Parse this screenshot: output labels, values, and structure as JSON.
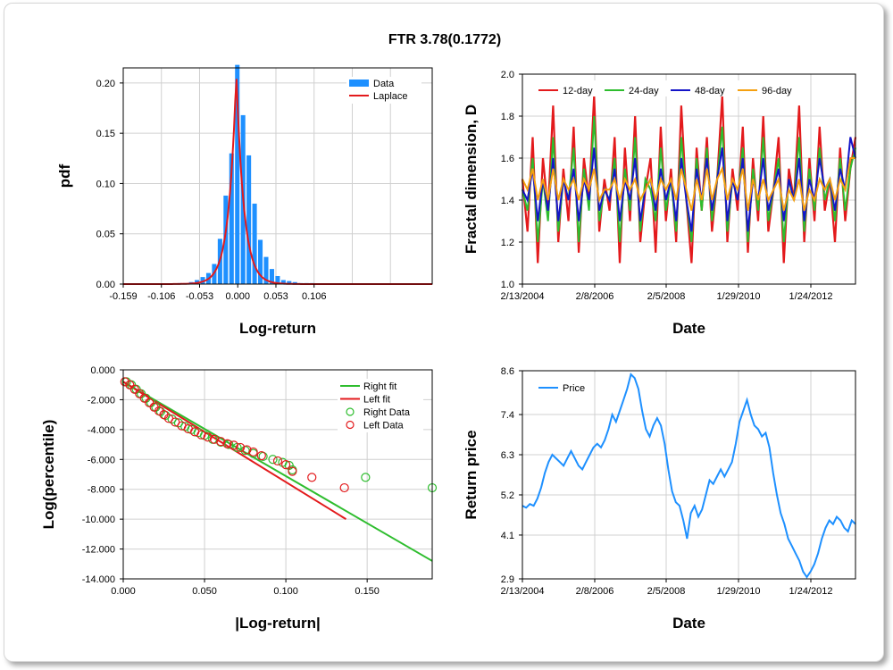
{
  "title": "FTR 3.78(0.1772)",
  "chart_data": [
    {
      "type": "bar",
      "id": "pdf",
      "xlabel": "Log-return",
      "ylabel": "pdf",
      "xticks": [
        "-0.159",
        "-0.106",
        "-0.053",
        "0.000",
        "0.053",
        "0.106"
      ],
      "yticks": [
        "0.00",
        "0.05",
        "0.10",
        "0.15",
        "0.20"
      ],
      "xlim": [
        -0.159,
        0.27
      ],
      "ylim": [
        0,
        0.215
      ],
      "legend": [
        "Data",
        "Laplace"
      ],
      "legend_position": "top-right",
      "colors": {
        "Data": "#1e90ff",
        "Laplace": "#e31a1c"
      },
      "bins_x": [
        -0.08,
        -0.072,
        -0.064,
        -0.056,
        -0.048,
        -0.04,
        -0.032,
        -0.024,
        -0.016,
        -0.008,
        0.0,
        0.008,
        0.016,
        0.024,
        0.032,
        0.04,
        0.048,
        0.056,
        0.064,
        0.072,
        0.08,
        0.088,
        0.096,
        0.104
      ],
      "bins_y": [
        0.001,
        0.001,
        0.002,
        0.004,
        0.007,
        0.011,
        0.02,
        0.045,
        0.088,
        0.13,
        0.218,
        0.168,
        0.128,
        0.08,
        0.044,
        0.027,
        0.015,
        0.008,
        0.004,
        0.003,
        0.002,
        0.001,
        0.001,
        0.001
      ],
      "laplace": {
        "mu": -0.002,
        "b": 0.0105,
        "peak": 0.21
      }
    },
    {
      "type": "line",
      "id": "fractal",
      "xlabel": "Date",
      "ylabel": "Fractal dimension, D",
      "xticks": [
        "2/13/2004",
        "2/8/2006",
        "2/5/2008",
        "1/29/2010",
        "1/24/2012"
      ],
      "yticks": [
        "1.0",
        "1.2",
        "1.4",
        "1.6",
        "1.8",
        "2.0"
      ],
      "ylim": [
        1.0,
        2.0
      ],
      "legend_position": "top-left",
      "series": [
        {
          "name": "12-day",
          "color": "#e31a1c",
          "values": [
            1.5,
            1.25,
            1.7,
            1.1,
            1.6,
            1.35,
            1.85,
            1.2,
            1.55,
            1.3,
            1.75,
            1.15,
            1.6,
            1.4,
            1.9,
            1.25,
            1.5,
            1.35,
            1.7,
            1.1,
            1.65,
            1.3,
            1.8,
            1.2,
            1.45,
            1.6,
            1.15,
            1.75,
            1.3,
            1.55,
            1.2,
            1.85,
            1.4,
            1.1,
            1.65,
            1.35,
            1.7,
            1.25,
            1.5,
            1.9,
            1.2,
            1.55,
            1.35,
            1.75,
            1.15,
            1.6,
            1.3,
            1.8,
            1.25,
            1.45,
            1.7,
            1.1,
            1.55,
            1.4,
            1.85,
            1.2,
            1.6,
            1.3,
            1.75,
            1.35,
            1.5,
            1.2,
            1.65,
            1.3,
            1.55,
            1.7
          ]
        },
        {
          "name": "24-day",
          "color": "#2ebd2e",
          "values": [
            1.45,
            1.35,
            1.6,
            1.2,
            1.5,
            1.3,
            1.7,
            1.25,
            1.5,
            1.4,
            1.65,
            1.2,
            1.55,
            1.35,
            1.8,
            1.3,
            1.45,
            1.4,
            1.6,
            1.2,
            1.55,
            1.35,
            1.7,
            1.25,
            1.5,
            1.45,
            1.3,
            1.65,
            1.35,
            1.5,
            1.25,
            1.7,
            1.4,
            1.2,
            1.6,
            1.35,
            1.65,
            1.3,
            1.5,
            1.75,
            1.25,
            1.5,
            1.4,
            1.65,
            1.2,
            1.55,
            1.35,
            1.7,
            1.3,
            1.45,
            1.6,
            1.2,
            1.5,
            1.4,
            1.7,
            1.25,
            1.55,
            1.35,
            1.65,
            1.4,
            1.5,
            1.3,
            1.6,
            1.35,
            1.55,
            1.65
          ]
        },
        {
          "name": "48-day",
          "color": "#1414c8",
          "values": [
            1.45,
            1.4,
            1.55,
            1.3,
            1.5,
            1.35,
            1.6,
            1.3,
            1.5,
            1.4,
            1.55,
            1.3,
            1.5,
            1.4,
            1.65,
            1.35,
            1.45,
            1.4,
            1.55,
            1.3,
            1.5,
            1.4,
            1.6,
            1.3,
            1.45,
            1.5,
            1.35,
            1.55,
            1.4,
            1.5,
            1.3,
            1.6,
            1.4,
            1.25,
            1.55,
            1.4,
            1.6,
            1.35,
            1.5,
            1.65,
            1.3,
            1.5,
            1.4,
            1.6,
            1.25,
            1.5,
            1.4,
            1.6,
            1.35,
            1.45,
            1.55,
            1.3,
            1.5,
            1.4,
            1.6,
            1.3,
            1.5,
            1.4,
            1.6,
            1.45,
            1.5,
            1.35,
            1.55,
            1.45,
            1.7,
            1.6
          ]
        },
        {
          "name": "96-day",
          "color": "#f5a010",
          "values": [
            1.5,
            1.45,
            1.55,
            1.4,
            1.5,
            1.4,
            1.55,
            1.4,
            1.5,
            1.45,
            1.5,
            1.4,
            1.5,
            1.45,
            1.55,
            1.4,
            1.45,
            1.45,
            1.5,
            1.4,
            1.5,
            1.45,
            1.5,
            1.4,
            1.45,
            1.5,
            1.4,
            1.5,
            1.45,
            1.5,
            1.4,
            1.55,
            1.45,
            1.35,
            1.5,
            1.4,
            1.55,
            1.4,
            1.5,
            1.55,
            1.4,
            1.5,
            1.45,
            1.55,
            1.35,
            1.5,
            1.4,
            1.5,
            1.4,
            1.45,
            1.5,
            1.35,
            1.45,
            1.4,
            1.5,
            1.35,
            1.45,
            1.4,
            1.5,
            1.45,
            1.5,
            1.4,
            1.5,
            1.45,
            1.6,
            1.6
          ]
        }
      ]
    },
    {
      "type": "scatter",
      "id": "tail",
      "xlabel": "|Log-return|",
      "ylabel": "Log(percentile)",
      "xticks": [
        "0.000",
        "0.050",
        "0.100",
        "0.150"
      ],
      "yticks": [
        "0.000",
        "-2.000",
        "-4.000",
        "-6.000",
        "-8.000",
        "-10.000",
        "-12.000",
        "-14.000"
      ],
      "xlim": [
        0,
        0.19
      ],
      "ylim": [
        -14,
        0
      ],
      "legend_position": "top-right",
      "fits": [
        {
          "name": "Right fit",
          "color": "#2ebd2e",
          "x": [
            0.0,
            0.19
          ],
          "y": [
            -0.8,
            -12.8
          ]
        },
        {
          "name": "Left fit",
          "color": "#e31a1c",
          "x": [
            0.0,
            0.137
          ],
          "y": [
            -0.8,
            -10.0
          ]
        }
      ],
      "data_series": [
        {
          "name": "Right Data",
          "color": "#2ebd2e",
          "x": [
            0.002,
            0.005,
            0.008,
            0.011,
            0.014,
            0.017,
            0.02,
            0.023,
            0.026,
            0.03,
            0.034,
            0.038,
            0.042,
            0.046,
            0.05,
            0.055,
            0.06,
            0.065,
            0.07,
            0.075,
            0.08,
            0.086,
            0.092,
            0.098,
            0.102,
            0.104,
            0.149,
            0.19
          ],
          "y": [
            -0.8,
            -1.0,
            -1.3,
            -1.6,
            -1.9,
            -2.2,
            -2.5,
            -2.8,
            -3.05,
            -3.3,
            -3.55,
            -3.8,
            -4.0,
            -4.2,
            -4.4,
            -4.65,
            -4.85,
            -5.0,
            -5.2,
            -5.4,
            -5.6,
            -5.8,
            -6.0,
            -6.2,
            -6.4,
            -6.7,
            -7.2,
            -7.9
          ]
        },
        {
          "name": "Left Data",
          "color": "#e31a1c",
          "x": [
            0.001,
            0.004,
            0.007,
            0.01,
            0.013,
            0.016,
            0.019,
            0.022,
            0.025,
            0.028,
            0.032,
            0.036,
            0.04,
            0.044,
            0.048,
            0.052,
            0.056,
            0.06,
            0.064,
            0.068,
            0.072,
            0.076,
            0.08,
            0.085,
            0.095,
            0.1,
            0.104,
            0.116,
            0.136
          ],
          "y": [
            -0.8,
            -1.0,
            -1.3,
            -1.6,
            -1.9,
            -2.2,
            -2.5,
            -2.75,
            -3.0,
            -3.25,
            -3.5,
            -3.75,
            -3.95,
            -4.15,
            -4.35,
            -4.5,
            -4.65,
            -4.8,
            -4.95,
            -5.05,
            -5.2,
            -5.35,
            -5.5,
            -5.75,
            -6.1,
            -6.35,
            -6.8,
            -7.2,
            -7.9
          ]
        }
      ]
    },
    {
      "type": "line",
      "id": "price",
      "xlabel": "Date",
      "ylabel": "Return price",
      "xticks": [
        "2/13/2004",
        "2/8/2006",
        "2/5/2008",
        "1/29/2010",
        "1/24/2012"
      ],
      "yticks": [
        "2.9",
        "4.1",
        "5.2",
        "6.3",
        "7.4",
        "8.6"
      ],
      "ylim": [
        2.9,
        8.6
      ],
      "legend_position": "top-left",
      "series": [
        {
          "name": "Price",
          "color": "#1e90ff",
          "values": [
            4.9,
            4.85,
            4.95,
            4.9,
            5.1,
            5.4,
            5.8,
            6.1,
            6.3,
            6.2,
            6.1,
            6.0,
            6.2,
            6.4,
            6.2,
            6.0,
            5.9,
            6.1,
            6.3,
            6.5,
            6.6,
            6.5,
            6.7,
            7.0,
            7.4,
            7.2,
            7.5,
            7.8,
            8.1,
            8.5,
            8.4,
            8.1,
            7.5,
            7.0,
            6.8,
            7.1,
            7.3,
            7.1,
            6.6,
            5.9,
            5.3,
            5.0,
            4.9,
            4.5,
            4.0,
            4.7,
            4.9,
            4.6,
            4.8,
            5.2,
            5.6,
            5.5,
            5.7,
            5.9,
            5.7,
            5.9,
            6.1,
            6.6,
            7.2,
            7.5,
            7.8,
            7.4,
            7.1,
            7.0,
            6.8,
            6.9,
            6.5,
            5.8,
            5.2,
            4.7,
            4.4,
            4.0,
            3.8,
            3.6,
            3.4,
            3.1,
            2.95,
            3.1,
            3.3,
            3.6,
            4.0,
            4.3,
            4.5,
            4.4,
            4.6,
            4.5,
            4.3,
            4.2,
            4.5,
            4.4
          ]
        }
      ]
    }
  ]
}
